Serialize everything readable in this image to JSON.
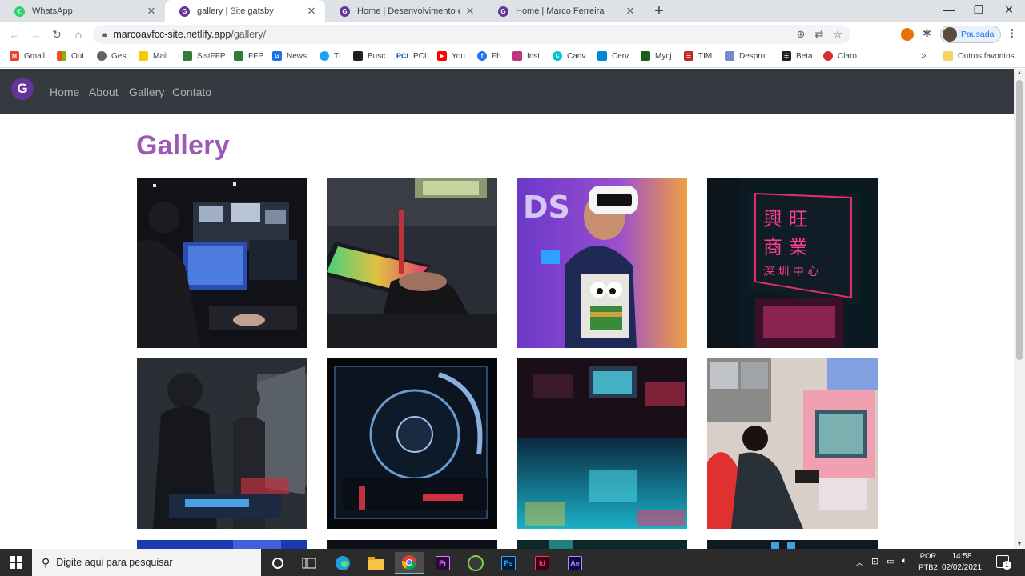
{
  "tabs": [
    {
      "label": "WhatsApp",
      "icon": "whatsapp-icon",
      "color": "#25d366"
    },
    {
      "label": "gallery | Site gatsby",
      "icon": "gatsby-icon",
      "color": "#663399",
      "active": true
    },
    {
      "label": "Home | Desenvolvimento é minha",
      "icon": "gatsby-icon",
      "color": "#663399"
    },
    {
      "label": "Home | Marco Ferreira",
      "icon": "gatsby-icon",
      "color": "#663399"
    }
  ],
  "address": {
    "host": "marcoavfcc-site.netlify.app",
    "path": "/gallery/"
  },
  "profile": {
    "label": "Pausada"
  },
  "bookmarks": [
    {
      "label": "Gmail",
      "color": "#ea4335"
    },
    {
      "label": "Out",
      "color": "#f25022"
    },
    {
      "label": "Gest",
      "color": "#5f6368"
    },
    {
      "label": "Mail",
      "color": "#f9c900"
    },
    {
      "label": "SistFFP",
      "color": "#2e7d32"
    },
    {
      "label": "FFP",
      "color": "#2e7d32"
    },
    {
      "label": "News",
      "color": "#1a73e8"
    },
    {
      "label": "Tt",
      "color": "#1da1f2"
    },
    {
      "label": "Busc",
      "color": "#202124"
    },
    {
      "label": "PCI",
      "color": "#0d47a1"
    },
    {
      "label": "You",
      "color": "#ff0000"
    },
    {
      "label": "Fb",
      "color": "#1877f2"
    },
    {
      "label": "Inst",
      "color": "#c13584"
    },
    {
      "label": "Canv",
      "color": "#00c4cc"
    },
    {
      "label": "Cerv",
      "color": "#0288d1"
    },
    {
      "label": "Mycj",
      "color": "#1b5e20"
    },
    {
      "label": "TIM",
      "color": "#c62828"
    },
    {
      "label": "Desprot",
      "color": "#7986cb"
    },
    {
      "label": "Beta",
      "color": "#202124"
    },
    {
      "label": "Claro",
      "color": "#d32f2f"
    }
  ],
  "bookmarks_other": "Outros favoritos",
  "site_nav": {
    "links": [
      "Home",
      "About",
      "Gallery",
      "Contato"
    ]
  },
  "page": {
    "title": "Gallery",
    "photos": [
      {
        "name": "esports-arena-photo"
      },
      {
        "name": "rgb-keyboard-photo"
      },
      {
        "name": "vr-headset-photo"
      },
      {
        "name": "neon-sign-building-photo"
      },
      {
        "name": "gamers-lan-photo"
      },
      {
        "name": "pc-case-fan-photo"
      },
      {
        "name": "arcade-reflection-photo"
      },
      {
        "name": "arcade-racing-photo"
      }
    ]
  },
  "taskbar": {
    "search_placeholder": "Digite aqui para pesquisar",
    "lang_top": "POR",
    "lang_bottom": "PTB2",
    "time": "14:58",
    "date": "02/02/2021",
    "notifications": "1"
  }
}
